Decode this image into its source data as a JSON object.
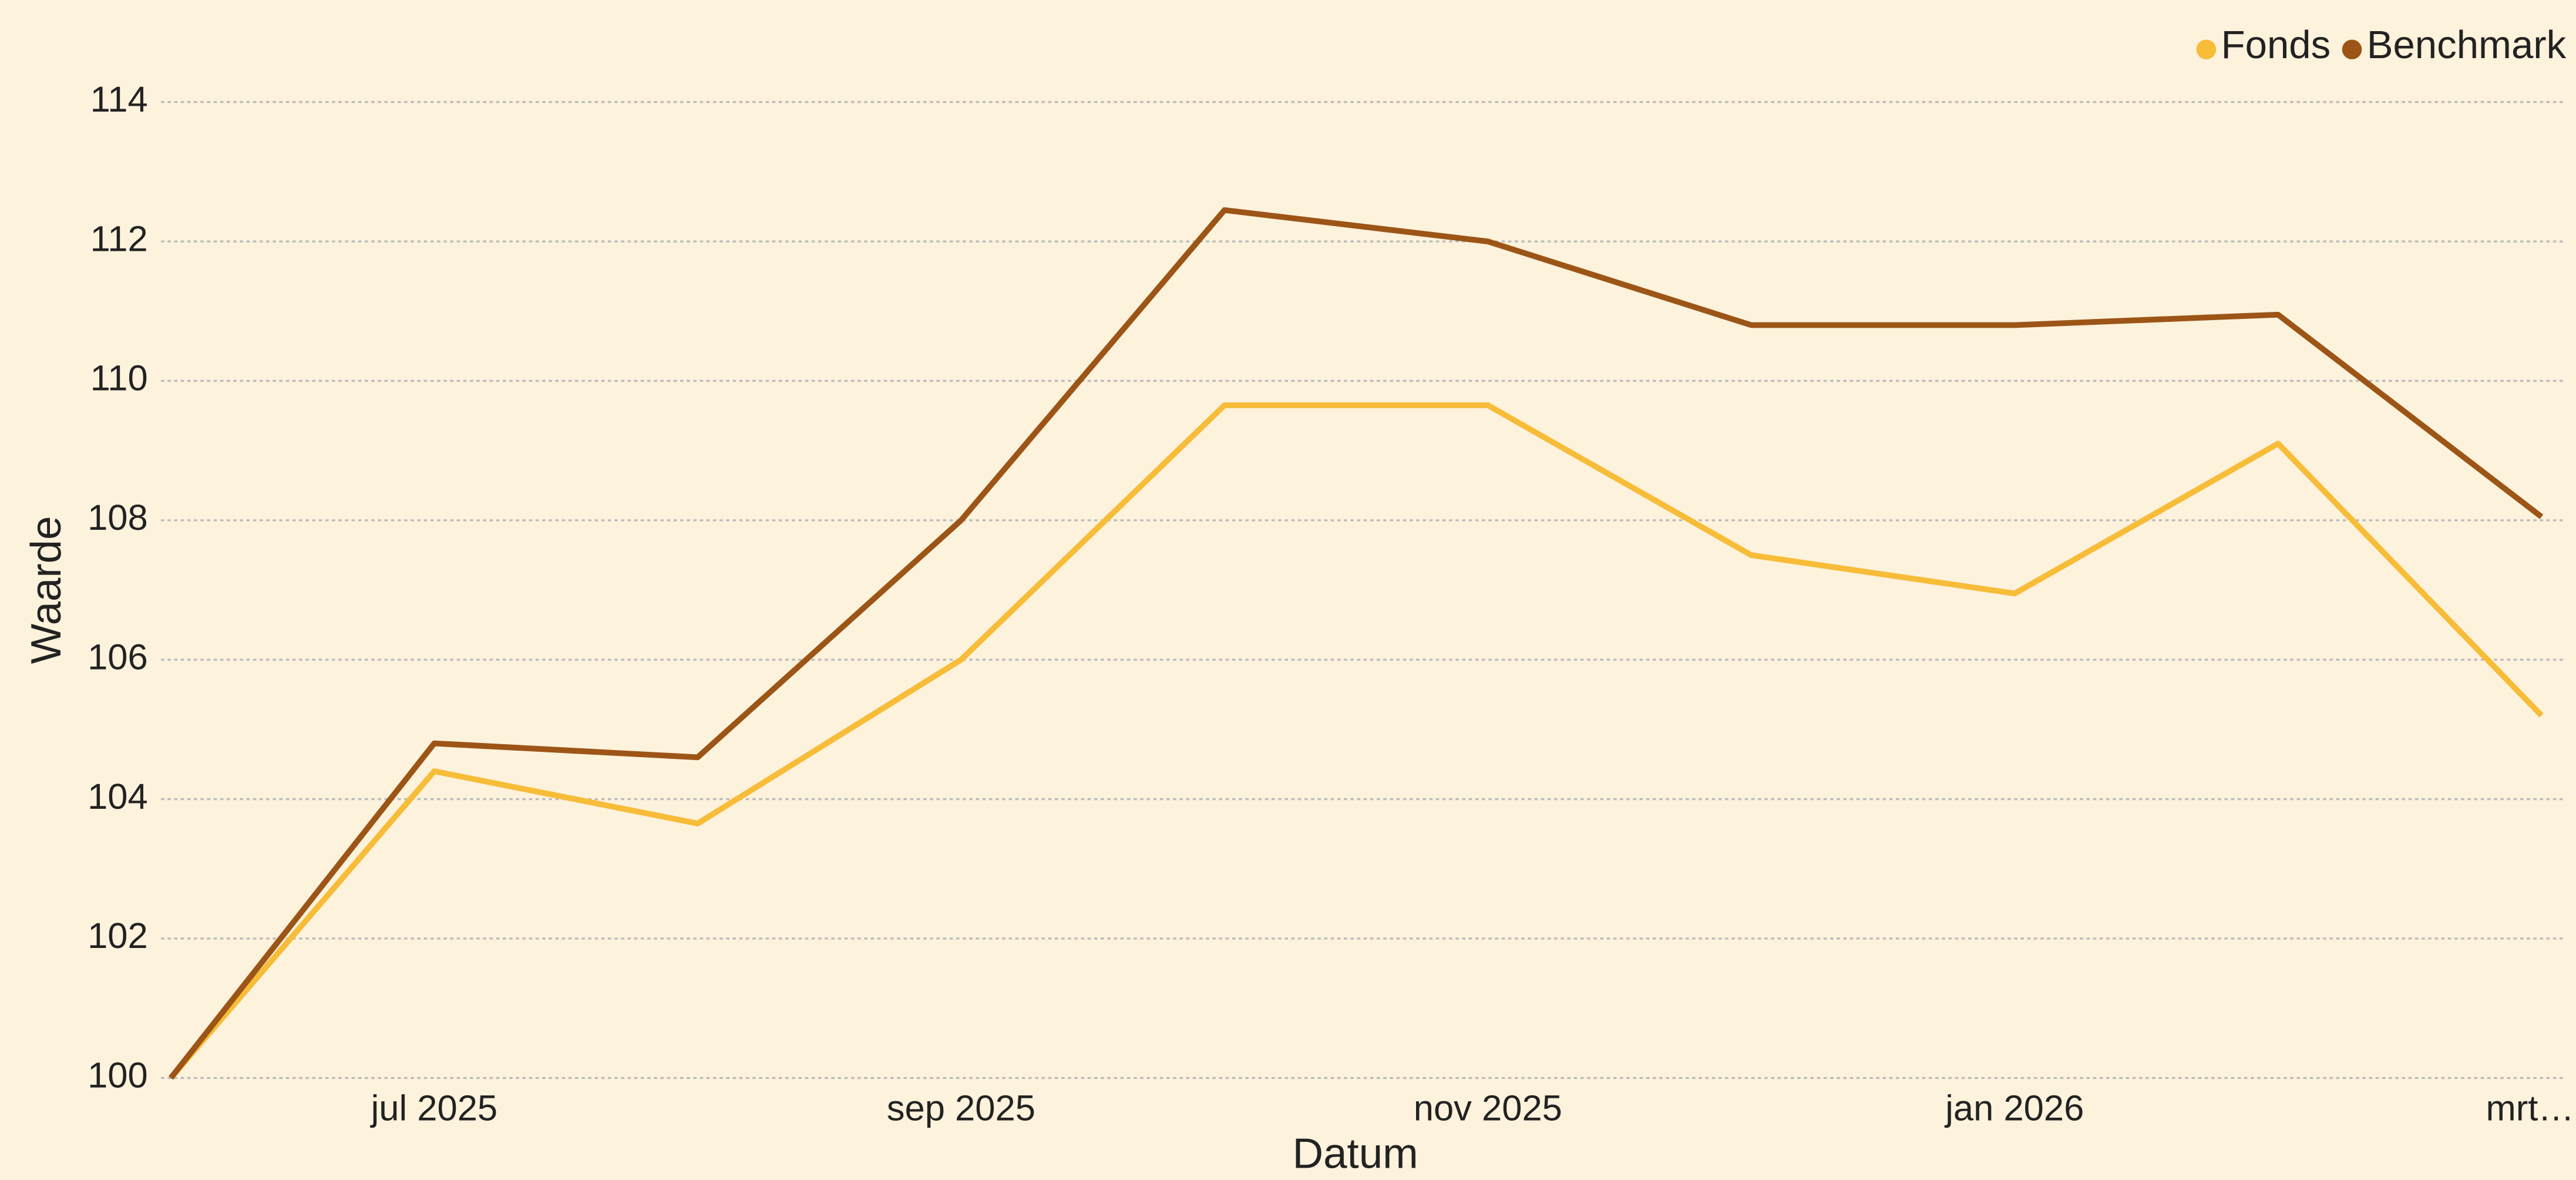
{
  "chart_data": {
    "type": "line",
    "x_label": "Datum",
    "y_label": "Waarde",
    "categories": [
      null,
      "jul 2025",
      null,
      "sep 2025",
      null,
      "nov 2025",
      null,
      "jan 2026",
      null,
      "mrt…"
    ],
    "series": [
      {
        "name": "Fonds",
        "color": "#f7bc38",
        "values": [
          100,
          104.4,
          103.65,
          106.0,
          109.65,
          109.65,
          107.5,
          106.95,
          109.1,
          105.2
        ]
      },
      {
        "name": "Benchmark",
        "color": "#9c5516",
        "values": [
          100,
          104.8,
          104.6,
          108.0,
          112.45,
          112.0,
          110.8,
          110.8,
          110.95,
          108.05
        ]
      }
    ],
    "ylim": [
      100,
      114
    ],
    "yticks": [
      100,
      102,
      104,
      106,
      108,
      110,
      112,
      114
    ],
    "grid": true,
    "legend": "top-right"
  }
}
